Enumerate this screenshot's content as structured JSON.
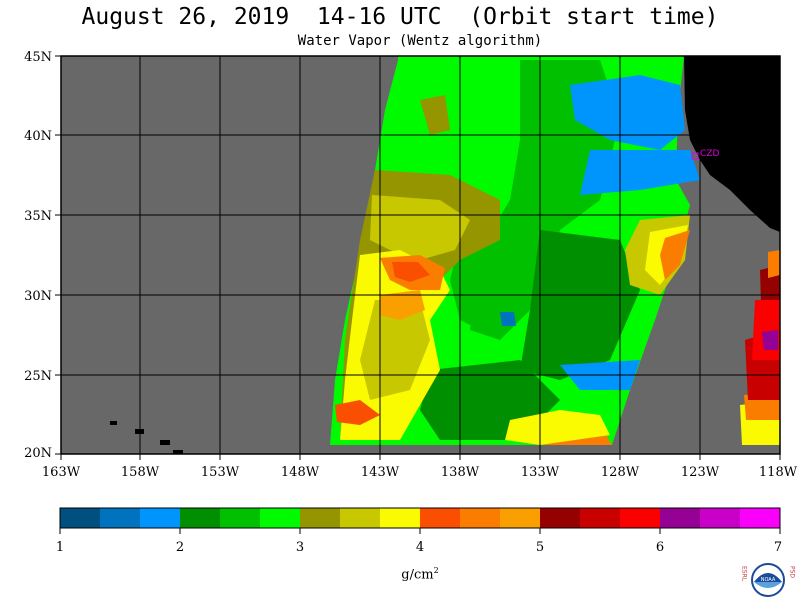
{
  "title": "August 26, 2019  14-16 UTC  (Orbit start time)",
  "subtitle": "Water Vapor (Wentz algorithm)",
  "map": {
    "lat_labels": [
      "45N",
      "40N",
      "35N",
      "30N",
      "25N",
      "20N"
    ],
    "lon_labels": [
      "163W",
      "158W",
      "153W",
      "148W",
      "143W",
      "138W",
      "133W",
      "128W",
      "123W",
      "118W"
    ],
    "station_label": "CZD"
  },
  "colorbar": {
    "tick_labels": [
      "1",
      "2",
      "3",
      "4",
      "5",
      "6",
      "7"
    ],
    "unit": "g/cm",
    "unit_exp": "2",
    "colors": [
      "#00507f",
      "#0073be",
      "#0095fd",
      "#008f00",
      "#00c000",
      "#00fa00",
      "#959500",
      "#c8c800",
      "#fafa00",
      "#fa4e00",
      "#fa7d00",
      "#fa9f00",
      "#950000",
      "#c80000",
      "#fa0000",
      "#950095",
      "#c800c8",
      "#fa00fa"
    ],
    "map_color_ocean_land_mask": "#686868",
    "map_color_land": "#000000"
  },
  "logo": {
    "left_letters": "ESRL",
    "right_letters": "PSD",
    "emblem_text": "NOAA"
  }
}
